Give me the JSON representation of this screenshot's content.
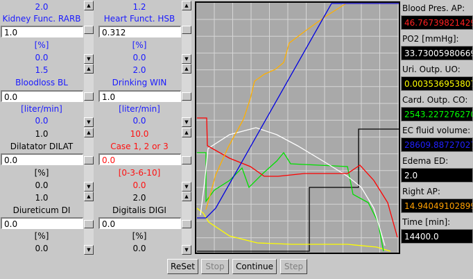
{
  "left_panel": {
    "columns": [
      [
        "2.0",
        "Kidney Func. RARB",
        "1.0",
        "[%]",
        "0.0",
        "1.5",
        "Bloodloss BL",
        "0.0",
        "[liter/min]",
        "0.0",
        "1.0",
        "Dilatator DILAT",
        "0.0",
        "[%]",
        "0.0",
        "1.0",
        "Diureticum DI",
        "0.0",
        "[%]",
        "0.0"
      ],
      [
        "1.2",
        "Heart Funct. HSB",
        "0.312",
        "[%]",
        "0.0",
        "2.0",
        "Drinking WIN",
        "1.0",
        "[liter/min]",
        "0.0",
        "10.0",
        "Case 1, 2 or 3",
        "0.0",
        "[0-3-6-10]",
        "0.0",
        "2.0",
        "Digitalis DIGI",
        "0.0",
        "[%]",
        "0.0"
      ]
    ]
  },
  "right_panel": {
    "items": [
      {
        "label": "Blood Pres. AP:",
        "value": "46.76739821429"
      },
      {
        "label": "PO2 [mmHg]:",
        "value": "33.73005980669"
      },
      {
        "label": "Uri. Outp. UO:",
        "value": "0.003536953807"
      },
      {
        "label": "Card. Outp. CO:",
        "value": "2543.227276270"
      },
      {
        "label": "EC fluid volume:",
        "value": "28609.88727027"
      },
      {
        "label": "Edema ED:",
        "value": "2.0"
      },
      {
        "label": "Right AP:",
        "value": "14.94049102899"
      },
      {
        "label": "Time [min]:",
        "value": "14400.0"
      }
    ]
  },
  "buttons": [
    {
      "label": "ReSet",
      "enabled": true
    },
    {
      "label": "Stop",
      "enabled": false
    },
    {
      "label": "Continue",
      "enabled": true
    },
    {
      "label": "Step",
      "enabled": false
    }
  ]
}
